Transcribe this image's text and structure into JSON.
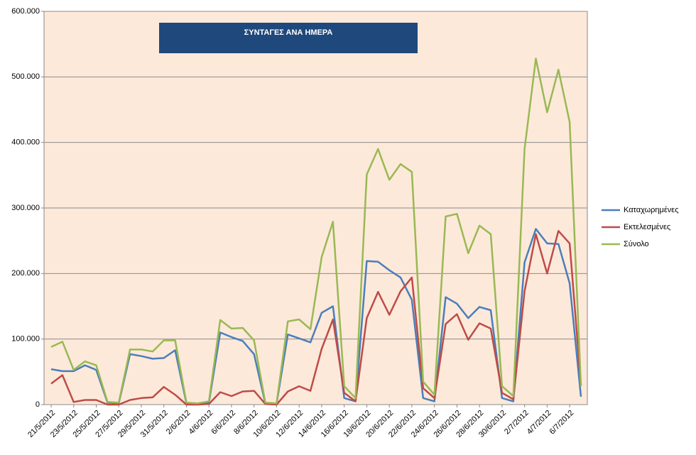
{
  "chart_data": {
    "type": "line",
    "title": "ΣΥΝΤΑΓΕΣ ΑΝΑ ΗΜΕΡΑ",
    "categories": [
      "21/5/2012",
      null,
      "23/5/2012",
      null,
      "25/5/2012",
      null,
      "27/5/2012",
      null,
      "29/5/2012",
      null,
      "31/5/2012",
      null,
      "2/6/2012",
      null,
      "4/6/2012",
      null,
      "6/6/2012",
      null,
      "8/6/2012",
      null,
      "10/6/2012",
      null,
      "12/6/2012",
      null,
      "14/6/2012",
      null,
      "16/6/2012",
      null,
      "18/6/2012",
      null,
      "20/6/2012",
      null,
      "22/6/2012",
      null,
      "24/6/2012",
      null,
      "26/6/2012",
      null,
      "28/6/2012",
      null,
      "30/6/2012",
      null,
      "2/7/2012",
      null,
      "4/7/2012",
      null,
      "6/7/2012",
      null
    ],
    "series": [
      {
        "name": "Καταχωρημένες",
        "color": "#4a7ebb",
        "values": [
          54000,
          51000,
          51000,
          60000,
          53000,
          3000,
          2000,
          77000,
          74000,
          70000,
          71000,
          83000,
          2000,
          1000,
          3000,
          110000,
          103000,
          97000,
          77000,
          2000,
          1000,
          107000,
          101000,
          95000,
          140000,
          150000,
          10000,
          5000,
          219000,
          218000,
          205000,
          194000,
          160000,
          10000,
          5000,
          164000,
          154000,
          132000,
          149000,
          144000,
          10000,
          5000,
          217000,
          268000,
          246000,
          245000,
          185000,
          12000
        ]
      },
      {
        "name": "Εκτελεσμένες",
        "color": "#be4b48",
        "values": [
          32000,
          45000,
          4000,
          7000,
          7000,
          0,
          0,
          7000,
          10000,
          11000,
          27000,
          15000,
          0,
          0,
          1000,
          19000,
          13000,
          20000,
          21000,
          1000,
          0,
          20000,
          28000,
          21000,
          85000,
          130000,
          18000,
          5000,
          132000,
          172000,
          137000,
          173000,
          194000,
          25000,
          10000,
          123000,
          138000,
          99000,
          124000,
          116000,
          18000,
          8000,
          173000,
          260000,
          200000,
          265000,
          246000,
          30000
        ]
      },
      {
        "name": "Σύνολο",
        "color": "#98b954",
        "values": [
          88000,
          96000,
          53000,
          66000,
          60000,
          4000,
          3000,
          84000,
          84000,
          81000,
          98000,
          98000,
          3000,
          2000,
          5000,
          129000,
          116000,
          117000,
          98000,
          3000,
          2000,
          127000,
          130000,
          115000,
          225000,
          279000,
          28000,
          10000,
          351000,
          390000,
          343000,
          367000,
          355000,
          35000,
          15000,
          287000,
          291000,
          231000,
          273000,
          260000,
          28000,
          13000,
          390000,
          528000,
          446000,
          511000,
          431000,
          28000
        ]
      }
    ],
    "ylim": [
      0,
      600000
    ],
    "yticks": [
      0,
      {
        "value": 100000,
        "label": "100.000"
      },
      {
        "value": 200000,
        "label": "200.000"
      },
      {
        "value": 300000,
        "label": "300.000"
      },
      {
        "value": 400000,
        "label": "400.000"
      },
      {
        "value": 500000,
        "label": "500.000"
      },
      {
        "value": 600000,
        "label": "600.000"
      }
    ],
    "grid": true,
    "legend": "right"
  }
}
